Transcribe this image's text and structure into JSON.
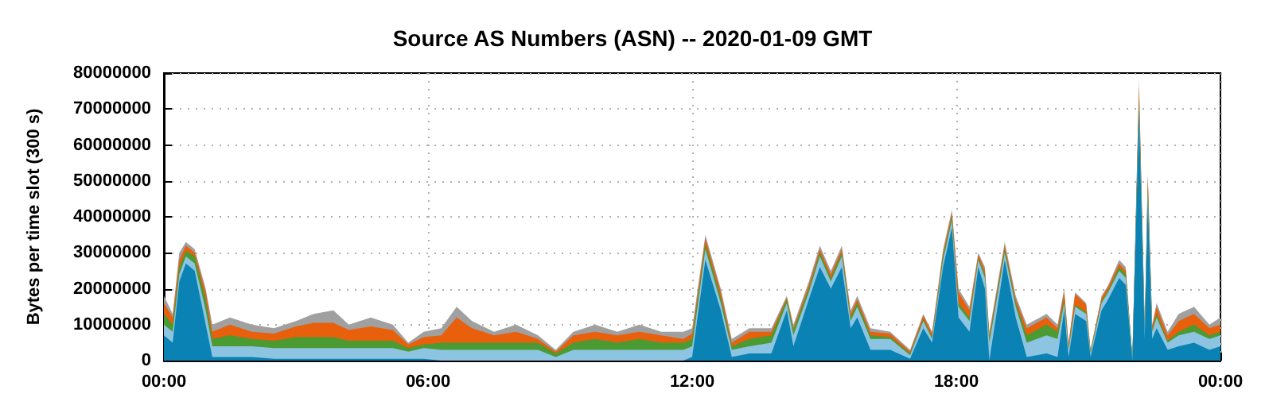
{
  "chart_data": {
    "type": "area",
    "title": "Source AS Numbers (ASN) -- 2020-01-09 GMT",
    "ylabel": "Bytes per time slot (300 s)",
    "stacked": true,
    "grid": true,
    "marker": "none",
    "x": [
      0,
      0.2,
      0.35,
      0.5,
      0.7,
      0.95,
      1.1,
      1.5,
      2,
      2.5,
      3,
      3.4,
      3.85,
      4.2,
      4.7,
      5.2,
      5.55,
      5.9,
      6.3,
      6.65,
      7,
      7.5,
      8,
      8.5,
      8.9,
      9.3,
      9.8,
      10.3,
      10.8,
      11.3,
      11.8,
      12,
      12.3,
      12.65,
      12.9,
      13.3,
      13.8,
      14.15,
      14.3,
      14.65,
      14.9,
      15.15,
      15.4,
      15.6,
      15.75,
      16.05,
      16.5,
      16.95,
      17.25,
      17.45,
      17.7,
      17.9,
      18.05,
      18.3,
      18.5,
      18.65,
      18.75,
      19.1,
      19.35,
      19.6,
      20.05,
      20.3,
      20.45,
      20.55,
      20.7,
      20.95,
      21.05,
      21.3,
      21.45,
      21.7,
      21.85,
      22,
      22.15,
      22.28,
      22.35,
      22.45,
      22.55,
      22.8,
      23.05,
      23.4,
      23.75,
      24
    ],
    "series": [
      {
        "color": "#0a82b4",
        "values": [
          7000000.0,
          5000000.0,
          22000000.0,
          27000000.0,
          25000000.0,
          10000000.0,
          1000000.0,
          1000000.0,
          1000000.0,
          500000.0,
          500000.0,
          500000.0,
          500000.0,
          500000.0,
          500000.0,
          500000.0,
          500000.0,
          500000.0,
          0,
          0,
          0,
          0,
          0,
          0,
          0,
          0,
          0,
          0,
          0,
          0,
          0,
          1000000.0,
          28000000.0,
          14000000.0,
          1000000.0,
          2000000.0,
          2000000.0,
          14000000.0,
          4000000.0,
          17000000.0,
          26000000.0,
          20000000.0,
          26000000.0,
          9000000.0,
          12000000.0,
          3000000.0,
          3000000.0,
          500000.0,
          9000000.0,
          5000000.0,
          26000000.0,
          37000000.0,
          12000000.0,
          8000000.0,
          26000000.0,
          20000000.0,
          0,
          28000000.0,
          12000000.0,
          1000000.0,
          2000000.0,
          1000000.0,
          14000000.0,
          1000000.0,
          13000000.0,
          11000000.0,
          1000000.0,
          14000000.0,
          17000000.0,
          23000000.0,
          21000000.0,
          0,
          69000000.0,
          6000000.0,
          45000000.0,
          6000000.0,
          9000000.0,
          3000000.0,
          4000000.0,
          5000000.0,
          3000000.0,
          4000000.0
        ]
      },
      {
        "color": "#8cc4e2",
        "values": [
          3000000.0,
          3000000.0,
          2000000.0,
          2000000.0,
          2000000.0,
          4000000.0,
          3000000.0,
          3000000.0,
          3000000.0,
          3000000.0,
          3000000.0,
          3000000.0,
          3000000.0,
          3000000.0,
          3000000.0,
          3000000.0,
          2000000.0,
          3000000.0,
          3000000.0,
          3000000.0,
          3000000.0,
          3000000.0,
          3000000.0,
          3000000.0,
          1000000.0,
          3000000.0,
          3000000.0,
          3000000.0,
          3000000.0,
          3000000.0,
          3000000.0,
          3000000.0,
          3000000.0,
          2000000.0,
          2000000.0,
          2000000.0,
          3000000.0,
          2000000.0,
          3000000.0,
          2000000.0,
          3000000.0,
          2000000.0,
          3000000.0,
          2000000.0,
          3000000.0,
          3000000.0,
          3000000.0,
          1000000.0,
          2000000.0,
          1000000.0,
          2000000.0,
          2000000.0,
          3000000.0,
          3000000.0,
          2000000.0,
          3000000.0,
          5000000.0,
          2000000.0,
          3000000.0,
          4000000.0,
          5000000.0,
          5000000.0,
          2000000.0,
          2000000.0,
          2000000.0,
          2000000.0,
          1000000.0,
          2000000.0,
          2000000.0,
          2000000.0,
          2000000.0,
          500000.0,
          2000000.0,
          2000000.0,
          2000000.0,
          2000000.0,
          3000000.0,
          2000000.0,
          3000000.0,
          3000000.0,
          3000000.0,
          3000000.0
        ]
      },
      {
        "color": "#4b9a32",
        "values": [
          3000000.0,
          2000000.0,
          2000000.0,
          1500000.0,
          2000000.0,
          3000000.0,
          2000000.0,
          3000000.0,
          2000000.0,
          2000000.0,
          3000000.0,
          3000000.0,
          3000000.0,
          2000000.0,
          2000000.0,
          2000000.0,
          1000000.0,
          1000000.0,
          2000000.0,
          2000000.0,
          2000000.0,
          2000000.0,
          2000000.0,
          2000000.0,
          1000000.0,
          2000000.0,
          3000000.0,
          2000000.0,
          3000000.0,
          2000000.0,
          2000000.0,
          2000000.0,
          1500000.0,
          1500000.0,
          1000000.0,
          2000000.0,
          2000000.0,
          1000000.0,
          1500000.0,
          1000000.0,
          1000000.0,
          1000000.0,
          1000000.0,
          1000000.0,
          1000000.0,
          1000000.0,
          500000.0,
          500000.0,
          500000.0,
          500000.0,
          1000000.0,
          1000000.0,
          1000000.0,
          1000000.0,
          500000.0,
          1000000.0,
          1000000.0,
          1000000.0,
          1000000.0,
          2000000.0,
          3000000.0,
          2000000.0,
          1000000.0,
          500000.0,
          500000.0,
          500000.0,
          500000.0,
          500000.0,
          500000.0,
          1000000.0,
          1000000.0,
          200000.0,
          2000000.0,
          500000.0,
          1000000.0,
          500000.0,
          1000000.0,
          500000.0,
          1000000.0,
          2000000.0,
          1000000.0,
          1000000.0
        ]
      },
      {
        "color": "#e8600c",
        "values": [
          3000000.0,
          2000000.0,
          2000000.0,
          1500000.0,
          1000000.0,
          2000000.0,
          2000000.0,
          3000000.0,
          2000000.0,
          2000000.0,
          3000000.0,
          4000000.0,
          4000000.0,
          3000000.0,
          4000000.0,
          3000000.0,
          1000000.0,
          2000000.0,
          2000000.0,
          7000000.0,
          4000000.0,
          2000000.0,
          3000000.0,
          1000000.0,
          500000.0,
          2000000.0,
          2000000.0,
          2000000.0,
          2000000.0,
          2000000.0,
          1000000.0,
          1500000.0,
          1500000.0,
          1500000.0,
          1000000.0,
          2000000.0,
          1000000.0,
          500000.0,
          500000.0,
          1000000.0,
          1000000.0,
          1000000.0,
          1000000.0,
          1000000.0,
          1000000.0,
          1000000.0,
          1000000.0,
          500000.0,
          1000000.0,
          1000000.0,
          1000000.0,
          1000000.0,
          3000000.0,
          2000000.0,
          1000000.0,
          1000000.0,
          1000000.0,
          1000000.0,
          1000000.0,
          2000000.0,
          2000000.0,
          1000000.0,
          2000000.0,
          1000000.0,
          3000000.0,
          2000000.0,
          300000.0,
          1000000.0,
          1000000.0,
          1000000.0,
          1000000.0,
          200000.0,
          3000000.0,
          1000000.0,
          3000000.0,
          1000000.0,
          2000000.0,
          1500000.0,
          3000000.0,
          3000000.0,
          2000000.0,
          2000000.0
        ]
      },
      {
        "color": "#a0a0a0",
        "values": [
          2000000.0,
          1000000.0,
          2000000.0,
          1000000.0,
          1000000.0,
          1000000.0,
          2000000.0,
          2000000.0,
          2000000.0,
          1500000.0,
          1500000.0,
          2500000.0,
          3500000.0,
          1500000.0,
          2500000.0,
          1500000.0,
          500000.0,
          1500000.0,
          2000000.0,
          3000000.0,
          2000000.0,
          1000000.0,
          2000000.0,
          1000000.0,
          500000.0,
          1000000.0,
          2000000.0,
          1000000.0,
          2000000.0,
          1000000.0,
          2000000.0,
          1500000.0,
          1000000.0,
          1000000.0,
          1000000.0,
          1000000.0,
          1000000.0,
          500000.0,
          1000000.0,
          1000000.0,
          1000000.0,
          1000000.0,
          1000000.0,
          1000000.0,
          1000000.0,
          1000000.0,
          500000.0,
          500000.0,
          500000.0,
          500000.0,
          1000000.0,
          1000000.0,
          1000000.0,
          1000000.0,
          500000.0,
          1000000.0,
          1000000.0,
          1000000.0,
          1000000.0,
          1000000.0,
          1000000.0,
          1000000.0,
          1000000.0,
          500000.0,
          500000.0,
          500000.0,
          200000.0,
          500000.0,
          500000.0,
          1000000.0,
          1000000.0,
          100000.0,
          2000000.0,
          500000.0,
          1000000.0,
          500000.0,
          1000000.0,
          1000000.0,
          2000000.0,
          2000000.0,
          1000000.0,
          2000000.0
        ]
      }
    ],
    "xlim": [
      0,
      24
    ],
    "xticks": [
      {
        "value": 0,
        "label": "00:00"
      },
      {
        "value": 6,
        "label": "06:00"
      },
      {
        "value": 12,
        "label": "12:00"
      },
      {
        "value": 18,
        "label": "18:00"
      },
      {
        "value": 24,
        "label": "00:00"
      }
    ],
    "ylim": [
      0,
      80000000
    ],
    "yticks": [
      0,
      10000000,
      20000000,
      30000000,
      40000000,
      50000000,
      60000000,
      70000000,
      80000000
    ]
  }
}
